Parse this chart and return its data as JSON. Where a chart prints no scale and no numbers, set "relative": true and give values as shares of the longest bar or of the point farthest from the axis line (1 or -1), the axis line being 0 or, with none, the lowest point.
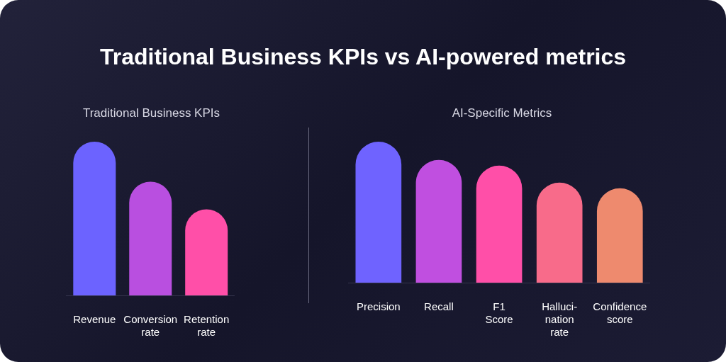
{
  "chart_data": [
    {
      "type": "bar",
      "title": "Traditional Business KPIs",
      "annotations": [
        "Traditional Business KPIs vs AI-powered metrics"
      ],
      "relative": true,
      "grid": false,
      "legend": false,
      "categories": [
        "Revenue",
        "Conversion\nrate",
        "Retention\nrate"
      ],
      "values": [
        1,
        0.74,
        0.56
      ],
      "colors": [
        "#6c63ff",
        "#b94fe0",
        "#ff4fa8"
      ]
    },
    {
      "type": "bar",
      "title": "AI-Specific Metrics",
      "relative": true,
      "grid": false,
      "legend": false,
      "categories": [
        "Precision",
        "Recall",
        "F1\nScore",
        "Halluci-\nnation\nrate",
        "Confidence\nscore"
      ],
      "values": [
        1,
        0.87,
        0.83,
        0.71,
        0.67
      ],
      "colors": [
        "#6f63ff",
        "#c04fe0",
        "#ff4fa8",
        "#f86b8a",
        "#ee8a6e"
      ]
    }
  ]
}
